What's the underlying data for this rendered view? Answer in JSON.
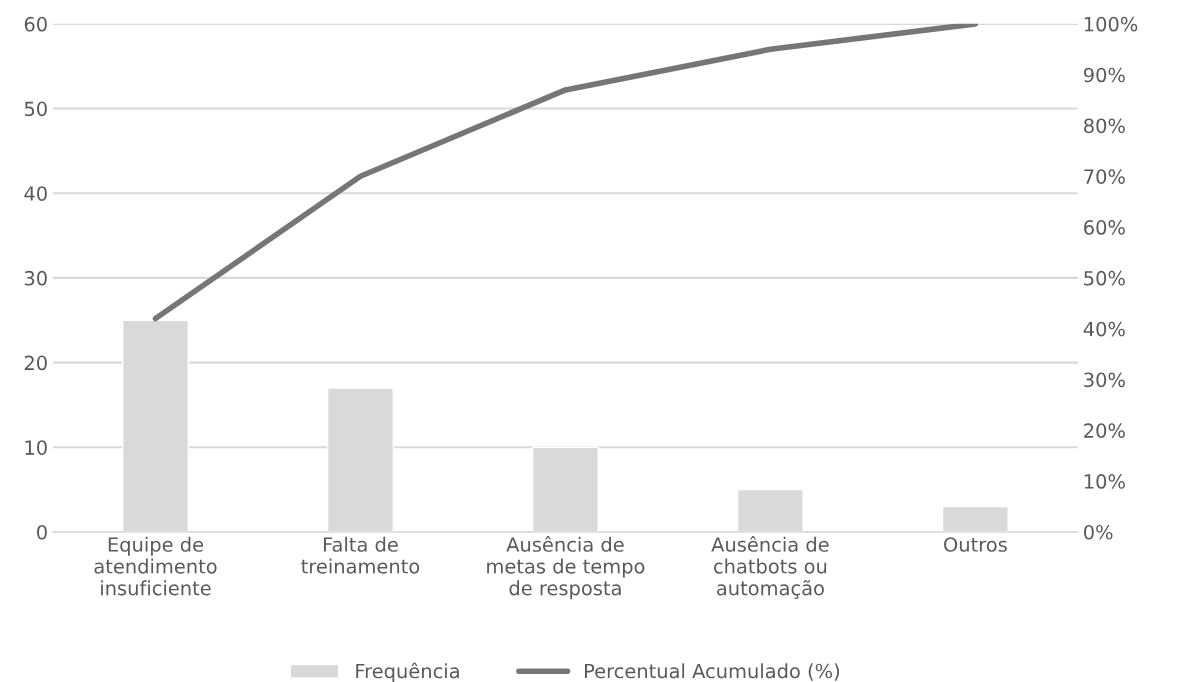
{
  "chart_data": {
    "type": "bar",
    "categories": [
      "Equipe de\natendimento\ninsuficiente",
      "Falta de\ntreinamento",
      "Ausência de\nmetas de tempo\nde resposta",
      "Ausência de\nchatbots ou\nautomação",
      "Outros"
    ],
    "series": [
      {
        "name": "Frequência",
        "color": "#d9d9d9",
        "values": [
          25,
          17,
          10,
          5,
          3
        ]
      },
      {
        "name": "Percentual Acumulado (%)",
        "type": "line",
        "axis": "y2",
        "color": "#767676",
        "values": [
          42,
          70,
          87,
          95,
          100
        ]
      }
    ],
    "ylim": [
      0,
      60
    ],
    "yticks": [
      0,
      10,
      20,
      30,
      40,
      50,
      60
    ],
    "y2lim": [
      0,
      100
    ],
    "y2ticks": [
      {
        "value": 0,
        "label": "0%"
      },
      {
        "value": 10,
        "label": "10%"
      },
      {
        "value": 20,
        "label": "20%"
      },
      {
        "value": 30,
        "label": "30%"
      },
      {
        "value": 40,
        "label": "40%"
      },
      {
        "value": 50,
        "label": "50%"
      },
      {
        "value": 60,
        "label": "60%"
      },
      {
        "value": 70,
        "label": "70%"
      },
      {
        "value": 80,
        "label": "80%"
      },
      {
        "value": 90,
        "label": "90%"
      },
      {
        "value": 100,
        "label": "100%"
      }
    ],
    "grid": "y",
    "legend": "bottom",
    "marker": "none",
    "line_style": "solid"
  }
}
